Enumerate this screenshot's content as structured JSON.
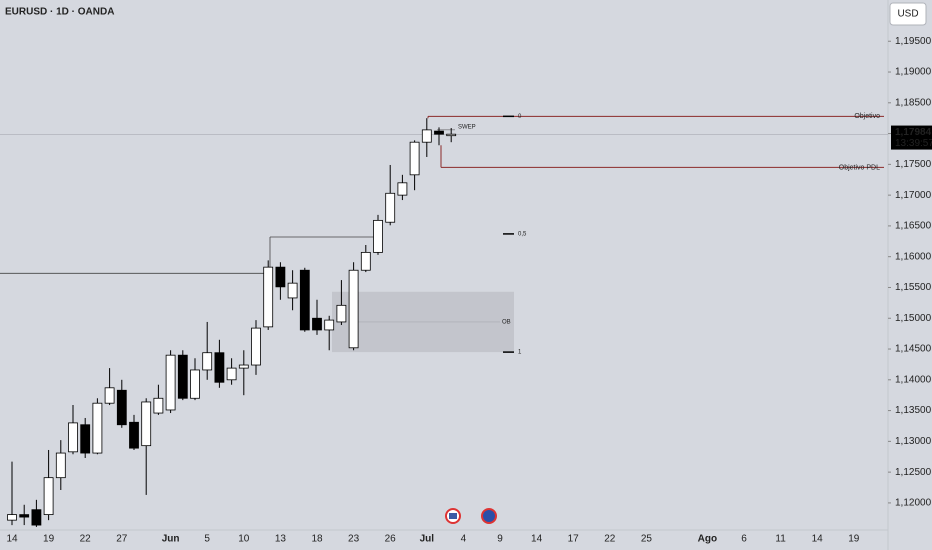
{
  "chart_data": {
    "type": "candlestick",
    "title": "EURUSD · 1D · OANDA",
    "currency": "USD",
    "categories": [
      "14",
      null,
      null,
      "19",
      null,
      null,
      "22",
      null,
      null,
      "27",
      null,
      null,
      null,
      "Jun",
      null,
      null,
      "5",
      null,
      null,
      "10",
      null,
      null,
      "13",
      null,
      null,
      "18",
      null,
      null,
      "23",
      null,
      null,
      "26",
      null,
      null,
      "Jul",
      null,
      null,
      "4",
      null,
      null,
      "9",
      null,
      null,
      "14",
      null,
      null,
      "17",
      null,
      null,
      "22",
      null,
      null,
      "25",
      null,
      null,
      null,
      null,
      "Ago",
      null,
      null,
      "6",
      null,
      null,
      "11",
      null,
      null,
      "14",
      null,
      null,
      "19"
    ],
    "open": [
      1.1172,
      1.1181,
      1.1189,
      1.1181,
      1.1241,
      1.1283,
      1.1327,
      1.1281,
      1.1362,
      1.1383,
      1.1331,
      1.1293,
      1.1346,
      1.1351,
      1.144,
      1.137,
      1.1416,
      1.1444,
      1.14,
      1.1419,
      1.1424,
      1.1486,
      1.1583,
      1.1533,
      1.1578,
      1.15,
      1.1481,
      1.1494,
      1.1452,
      1.1578,
      1.1607,
      1.1656,
      1.17,
      1.1733,
      1.1786,
      1.1804,
      1.1799,
      null,
      null,
      null,
      null,
      null,
      null,
      null,
      null,
      null,
      null,
      null,
      null,
      null,
      null,
      null,
      null,
      null,
      null,
      null,
      null,
      null,
      null,
      null,
      null,
      null,
      null,
      null,
      null,
      null,
      null,
      null,
      null,
      null
    ],
    "high": [
      1.1267,
      1.1197,
      1.1205,
      1.1286,
      1.1302,
      1.1359,
      1.1338,
      1.137,
      1.1419,
      1.14,
      1.1343,
      1.137,
      1.1392,
      1.1448,
      1.1448,
      1.1435,
      1.1494,
      1.1465,
      1.1435,
      1.1448,
      1.1497,
      1.1594,
      1.1591,
      1.1578,
      1.1582,
      1.153,
      1.1504,
      1.1562,
      1.1591,
      1.1619,
      1.1668,
      1.1749,
      1.1733,
      1.1789,
      1.1825,
      1.181,
      1.1809,
      null,
      null,
      null,
      null,
      null,
      null,
      null,
      null,
      null,
      null,
      null,
      null,
      null,
      null,
      null,
      null,
      null,
      null,
      null,
      null,
      null,
      null,
      null,
      null,
      null,
      null,
      null,
      null,
      null,
      null,
      null,
      null,
      null
    ],
    "low": [
      1.1164,
      1.1164,
      1.1161,
      1.1172,
      1.1221,
      1.1279,
      1.1273,
      1.1279,
      1.1359,
      1.1322,
      1.1286,
      1.1213,
      1.1343,
      1.1346,
      1.1367,
      1.1367,
      1.14,
      1.1387,
      1.1392,
      1.1375,
      1.1408,
      1.1481,
      1.153,
      1.1513,
      1.1478,
      1.1473,
      1.1448,
      1.1489,
      1.1448,
      1.1575,
      1.1603,
      1.1651,
      1.1692,
      1.1708,
      1.1762,
      1.1781,
      1.1786,
      null,
      null,
      null,
      null,
      null,
      null,
      null,
      null,
      null,
      null,
      null,
      null,
      null,
      null,
      null,
      null,
      null,
      null,
      null,
      null,
      null,
      null,
      null,
      null,
      null,
      null,
      null,
      null,
      null,
      null,
      null,
      null,
      null
    ],
    "close": [
      1.1181,
      1.1177,
      1.1164,
      1.1241,
      1.1281,
      1.133,
      1.1281,
      1.1362,
      1.1387,
      1.1327,
      1.1289,
      1.1364,
      1.137,
      1.144,
      1.137,
      1.1416,
      1.1444,
      1.1396,
      1.1419,
      1.1424,
      1.1484,
      1.1583,
      1.1551,
      1.1557,
      1.1481,
      1.1481,
      1.1497,
      1.1521,
      1.1578,
      1.1607,
      1.1659,
      1.1703,
      1.172,
      1.1786,
      1.1806,
      1.1799,
      1.1799,
      null,
      null,
      null,
      null,
      null,
      null,
      null,
      null,
      null,
      null,
      null,
      null,
      null,
      null,
      null,
      null,
      null,
      null,
      null,
      null,
      null,
      null,
      null,
      null,
      null,
      null,
      null,
      null,
      null,
      null,
      null,
      null,
      null
    ],
    "up_color": "#ffffff",
    "down_color": "#000000",
    "wick_color": "#000000",
    "ylim": [
      1.1156,
      1.2017
    ],
    "yticks": [
      {
        "value": 1.195,
        "label": "1,19500"
      },
      {
        "value": 1.19,
        "label": "1,19000"
      },
      {
        "value": 1.185,
        "label": "1,18500"
      },
      {
        "value": 1.18,
        "label": "1,18000"
      },
      {
        "value": 1.175,
        "label": "1,17500"
      },
      {
        "value": 1.17,
        "label": "1,17000"
      },
      {
        "value": 1.165,
        "label": "1,16500"
      },
      {
        "value": 1.16,
        "label": "1,16000"
      },
      {
        "value": 1.155,
        "label": "1,15500"
      },
      {
        "value": 1.15,
        "label": "1,15000"
      },
      {
        "value": 1.145,
        "label": "1,14500"
      },
      {
        "value": 1.14,
        "label": "1,14000"
      },
      {
        "value": 1.135,
        "label": "1,13500"
      },
      {
        "value": 1.13,
        "label": "1,13000"
      },
      {
        "value": 1.125,
        "label": "1,12500"
      },
      {
        "value": 1.12,
        "label": "1,12000"
      }
    ],
    "last_price": {
      "value": 1.17984,
      "label": "1,17984"
    },
    "countdown": "13:39:57",
    "annotations": {
      "lines": [
        {
          "label": "Objetivo",
          "value": 1.1828,
          "color": "#8b2a2a"
        },
        {
          "label": "Objetivo PDL",
          "value": 1.1745,
          "color": "#8b2a2a"
        }
      ],
      "fib": [
        {
          "label": "0",
          "value": 1.1828
        },
        {
          "label": "0,5",
          "value": 1.1637
        },
        {
          "label": "1",
          "value": 1.1445
        }
      ],
      "zone": {
        "label": "OB",
        "top": 1.1543,
        "bottom": 1.1445
      },
      "structure": [
        1.1573,
        1.1632
      ],
      "sweep": {
        "label": "SWEP",
        "value": 1.1806
      }
    }
  }
}
